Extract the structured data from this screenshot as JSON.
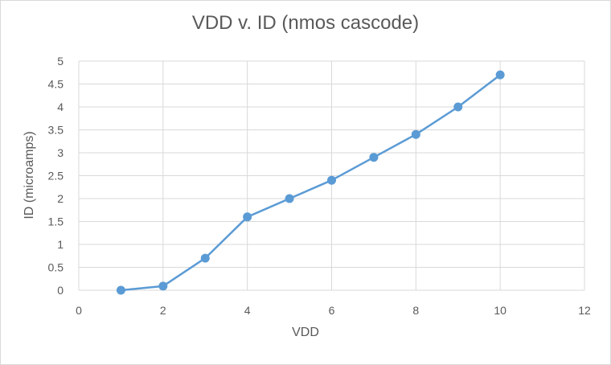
{
  "chart_data": {
    "type": "scatter",
    "title": "VDD v. ID (nmos cascode)",
    "xlabel": "VDD",
    "ylabel": "ID (microamps)",
    "xlim": [
      0,
      12
    ],
    "ylim": [
      0,
      5
    ],
    "x_ticks": [
      0,
      2,
      4,
      6,
      8,
      10,
      12
    ],
    "y_ticks": [
      0,
      0.5,
      1,
      1.5,
      2,
      2.5,
      3,
      3.5,
      4,
      4.5,
      5
    ],
    "grid": true,
    "legend": "none",
    "series": [
      {
        "color": "#5b9bd5",
        "style": "line-with-markers",
        "x": [
          1,
          2,
          3,
          4,
          5,
          6,
          7,
          8,
          9,
          10
        ],
        "y": [
          0,
          0.09,
          0.7,
          1.6,
          2,
          2.4,
          2.9,
          3.4,
          4,
          4.7
        ]
      }
    ],
    "colors": {
      "gridline": "#d9d9d9",
      "text": "#595959",
      "series": "#5b9bd5"
    }
  }
}
